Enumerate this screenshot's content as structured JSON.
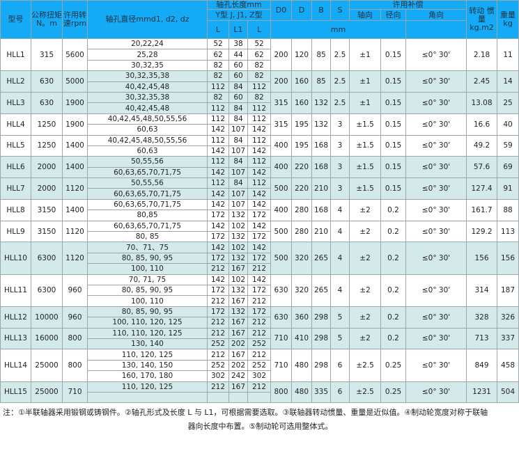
{
  "header": {
    "model": "型号",
    "torque": "公称扭矩N。m",
    "speed": "许用转速rpm",
    "bore": "轴孔直径mmd1, d2, dz",
    "bore_length": "轴孔长度mm",
    "bore_types": "Y型 J, J1, Z型",
    "L": "L",
    "L1": "L1",
    "L_2": "L",
    "D0": "D0",
    "D": "D",
    "B": "B",
    "S": "S",
    "mm": "mm",
    "compensation": "许用补偿",
    "axial": "轴向",
    "radial": "径向",
    "angular": "角向",
    "inertia": "转动 惯量kg.m2",
    "weight": "重量kg"
  },
  "colors": {
    "header_bg": "#14aaf5",
    "alt_row_bg": "#d4e9ea"
  },
  "models": [
    {
      "model": "HLL1",
      "torque": "315",
      "speed": "5600",
      "D0": "200",
      "D": "120",
      "B": "85",
      "S": "2.5",
      "axial": "±1",
      "radial": "0.15",
      "angular": "≤0°  30'",
      "inertia": "2.18",
      "weight": "11",
      "alt": false,
      "bores": [
        [
          "20,22,24",
          "52",
          "38",
          "52"
        ],
        [
          "25,28",
          "62",
          "44",
          "62"
        ],
        [
          "30,32,35",
          "82",
          "60",
          "82"
        ]
      ]
    },
    {
      "model": "HLL2",
      "torque": "630",
      "speed": "5000",
      "D0": "200",
      "D": "160",
      "B": "85",
      "S": "2.5",
      "axial": "±1",
      "radial": "0.15",
      "angular": "≤0°  30'",
      "inertia": "2.45",
      "weight": "14",
      "alt": true,
      "bores": [
        [
          "30,32,35,38",
          "82",
          "60",
          "82"
        ],
        [
          "40,42,45,48",
          "112",
          "84",
          "112"
        ]
      ]
    },
    {
      "model": "HLL3",
      "torque": "630",
      "speed": "1900",
      "D0": "315",
      "D": "160",
      "B": "132",
      "S": "2.5",
      "axial": "±1",
      "radial": "0.15",
      "angular": "≤0°  30'",
      "inertia": "13.08",
      "weight": "25",
      "alt": true,
      "bores": [
        [
          "30,32,35,38",
          "82",
          "60",
          "82"
        ],
        [
          "40,42,45,48",
          "112",
          "84",
          "112"
        ]
      ]
    },
    {
      "model": "HLL4",
      "torque": "1250",
      "speed": "1900",
      "D0": "315",
      "D": "195",
      "B": "132",
      "S": "3",
      "axial": "±1.5",
      "radial": "0.15",
      "angular": "≤0°  30'",
      "inertia": "16.6",
      "weight": "40",
      "alt": false,
      "bores": [
        [
          "40,42,45,48,50,55,56",
          "112",
          "84",
          "112"
        ],
        [
          "60,63",
          "142",
          "107",
          "142"
        ]
      ]
    },
    {
      "model": "HLL5",
      "torque": "1250",
      "speed": "1400",
      "D0": "400",
      "D": "195",
      "B": "168",
      "S": "3",
      "axial": "±1.5",
      "radial": "0.15",
      "angular": "≤0°  30'",
      "inertia": "49.2",
      "weight": "59",
      "alt": false,
      "bores": [
        [
          "40,42,45,48,50,55,56",
          "112",
          "84",
          "112"
        ],
        [
          "60,63",
          "142",
          "107",
          "142"
        ]
      ]
    },
    {
      "model": "HLL6",
      "torque": "2000",
      "speed": "1400",
      "D0": "400",
      "D": "220",
      "B": "168",
      "S": "3",
      "axial": "±1.5",
      "radial": "0.15",
      "angular": "≤0°  30'",
      "inertia": "57.6",
      "weight": "69",
      "alt": true,
      "bores": [
        [
          "50,55,56",
          "112",
          "84",
          "112"
        ],
        [
          "60,63,65,70,71,75",
          "142",
          "107",
          "142"
        ]
      ]
    },
    {
      "model": "HLL7",
      "torque": "2000",
      "speed": "1120",
      "D0": "500",
      "D": "220",
      "B": "210",
      "S": "3",
      "axial": "±1.5",
      "radial": "0.15",
      "angular": "≤0°  30'",
      "inertia": "127.4",
      "weight": "91",
      "alt": true,
      "bores": [
        [
          "50,55,56",
          "112",
          "84",
          "112"
        ],
        [
          "60,63,65,70,71,75",
          "142",
          "107",
          "142"
        ]
      ]
    },
    {
      "model": "HLL8",
      "torque": "3150",
      "speed": "1400",
      "D0": "400",
      "D": "280",
      "B": "168",
      "S": "4",
      "axial": "±2",
      "radial": "0.2",
      "angular": "≤0°  30'",
      "inertia": "161.7",
      "weight": "88",
      "alt": false,
      "bores": [
        [
          "60,63,65,70,71,75",
          "142",
          "107",
          "142"
        ],
        [
          "80,85",
          "172",
          "132",
          "172"
        ]
      ]
    },
    {
      "model": "HLL9",
      "torque": "3150",
      "speed": "1120",
      "D0": "500",
      "D": "280",
      "B": "210",
      "S": "4",
      "axial": "±2",
      "radial": "0.2",
      "angular": "≤0°  30'",
      "inertia": "129.2",
      "weight": "113",
      "alt": false,
      "bores": [
        [
          "60,63,65,70,71,75",
          "142",
          "102",
          "142"
        ],
        [
          "80, 85",
          "172",
          "132",
          "172"
        ]
      ]
    },
    {
      "model": "HLL10",
      "torque": "6300",
      "speed": "1120",
      "D0": "500",
      "D": "320",
      "B": "265",
      "S": "4",
      "axial": "±2",
      "radial": "0.2",
      "angular": "≤0°  30'",
      "inertia": "156",
      "weight": "156",
      "alt": true,
      "bores": [
        [
          "70、71、75",
          "142",
          "102",
          "142"
        ],
        [
          "80, 85, 90, 95",
          "172",
          "132",
          "172"
        ],
        [
          "100, 110",
          "212",
          "167",
          "212"
        ]
      ]
    },
    {
      "model": "HLL11",
      "torque": "6300",
      "speed": "960",
      "D0": "630",
      "D": "320",
      "B": "265",
      "S": "4",
      "axial": "±2",
      "radial": "0.2",
      "angular": "≤0°  30'",
      "inertia": "314",
      "weight": "187",
      "alt": false,
      "bores": [
        [
          "70, 71, 75",
          "142",
          "102",
          "142"
        ],
        [
          "80, 85, 90, 95",
          "172",
          "132",
          "172"
        ],
        [
          "100, 110",
          "212",
          "167",
          "212"
        ]
      ]
    },
    {
      "model": "HLL12",
      "torque": "10000",
      "speed": "960",
      "D0": "630",
      "D": "360",
      "B": "298",
      "S": "5",
      "axial": "±2",
      "radial": "0.2",
      "angular": "≤0°  30'",
      "inertia": "328",
      "weight": "326",
      "alt": true,
      "bores": [
        [
          "80, 85, 90, 95",
          "172",
          "132",
          "172"
        ],
        [
          "100, 110, 120, 125",
          "212",
          "167",
          "212"
        ]
      ]
    },
    {
      "model": "HLL13",
      "torque": "16000",
      "speed": "800",
      "D0": "710",
      "D": "410",
      "B": "298",
      "S": "5",
      "axial": "±2",
      "radial": "0.2",
      "angular": "≤0°  30'",
      "inertia": "713",
      "weight": "337",
      "alt": true,
      "bores": [
        [
          "110, 110, 120, 125",
          "212",
          "167",
          "212"
        ],
        [
          "130, 140",
          "252",
          "202",
          "252"
        ]
      ]
    },
    {
      "model": "HLL14",
      "torque": "25000",
      "speed": "800",
      "D0": "710",
      "D": "480",
      "B": "298",
      "S": "6",
      "axial": "±2.5",
      "radial": "0.25",
      "angular": "≤0°  30'",
      "inertia": "849",
      "weight": "458",
      "alt": false,
      "bores": [
        [
          "110, 120, 125",
          "212",
          "167",
          "212"
        ],
        [
          "130, 140, 150",
          "252",
          "202",
          "252"
        ],
        [
          "160, 170, 180",
          "302",
          "242",
          "302"
        ]
      ]
    },
    {
      "model": "HLL15",
      "torque": "25000",
      "speed": "710",
      "D0": "800",
      "D": "480",
      "B": "335",
      "S": "6",
      "axial": "±2.5",
      "radial": "0.25",
      "angular": "≤0°  30'",
      "inertia": "1231",
      "weight": "504",
      "alt": true,
      "bores": [
        [
          "110, 120, 125",
          "212",
          "167",
          "212"
        ],
        [
          "",
          "",
          "",
          ""
        ]
      ]
    }
  ],
  "note": {
    "line1": "注：①半联轴器采用锻钢或铸钢件。②轴孔形式及长度 L 与 L1，可根据需要选取。③联轴器转动惯量、重量是近似值。④制动轮宽度对称于联轴",
    "line2": "器向长度中布置。⑤制动轮可选用整体式。"
  }
}
